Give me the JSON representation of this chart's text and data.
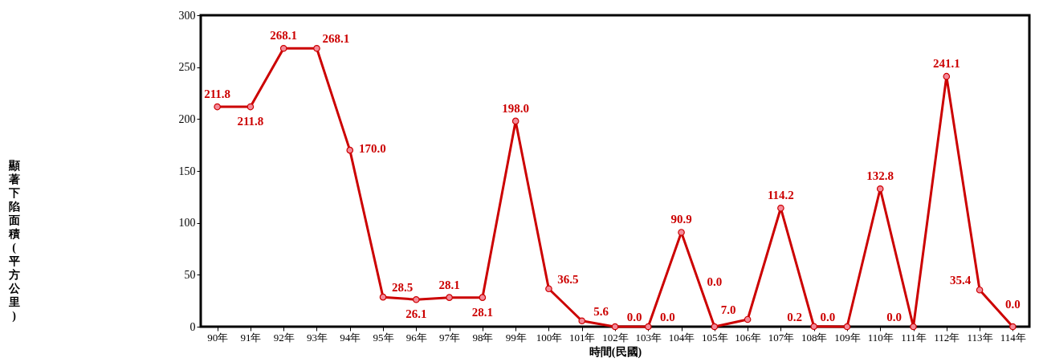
{
  "chart_data": {
    "type": "line",
    "xlabel": "時間(民國)",
    "ylabel": "顯著下陷面積(平方公里)",
    "categories": [
      "90年",
      "91年",
      "92年",
      "93年",
      "94年",
      "95年",
      "96年",
      "97年",
      "98年",
      "99年",
      "100年",
      "101年",
      "102年",
      "103年",
      "104年",
      "105年",
      "106年",
      "107年",
      "108年",
      "109年",
      "110年",
      "111年",
      "112年",
      "113年",
      "114年"
    ],
    "series": [
      {
        "color": "#cc0000",
        "values": [
          211.8,
          211.8,
          268.1,
          268.1,
          170.0,
          28.5,
          26.1,
          28.1,
          28.1,
          198.0,
          36.5,
          5.6,
          0.0,
          0.0,
          90.9,
          0.0,
          7.0,
          114.2,
          0.2,
          0.0,
          132.8,
          0.0,
          241.1,
          35.4,
          0.0
        ],
        "value_labels": [
          "211.8",
          "211.8",
          "268.1",
          "268.1",
          "170.0",
          "28.5",
          "26.1",
          "28.1",
          "28.1",
          "198.0",
          "36.5",
          "5.6",
          "0.0",
          "0.0",
          "90.9",
          "0.0",
          "7.0",
          "114.2",
          "0.2",
          "0.0",
          "132.8",
          "0.0",
          "241.1",
          "35.4",
          "0.0"
        ]
      }
    ],
    "ylim": [
      0,
      300
    ],
    "yticks": [
      0,
      50,
      100,
      150,
      200,
      250,
      300
    ],
    "grid": false,
    "marker": "circle",
    "line_style": "solid"
  }
}
